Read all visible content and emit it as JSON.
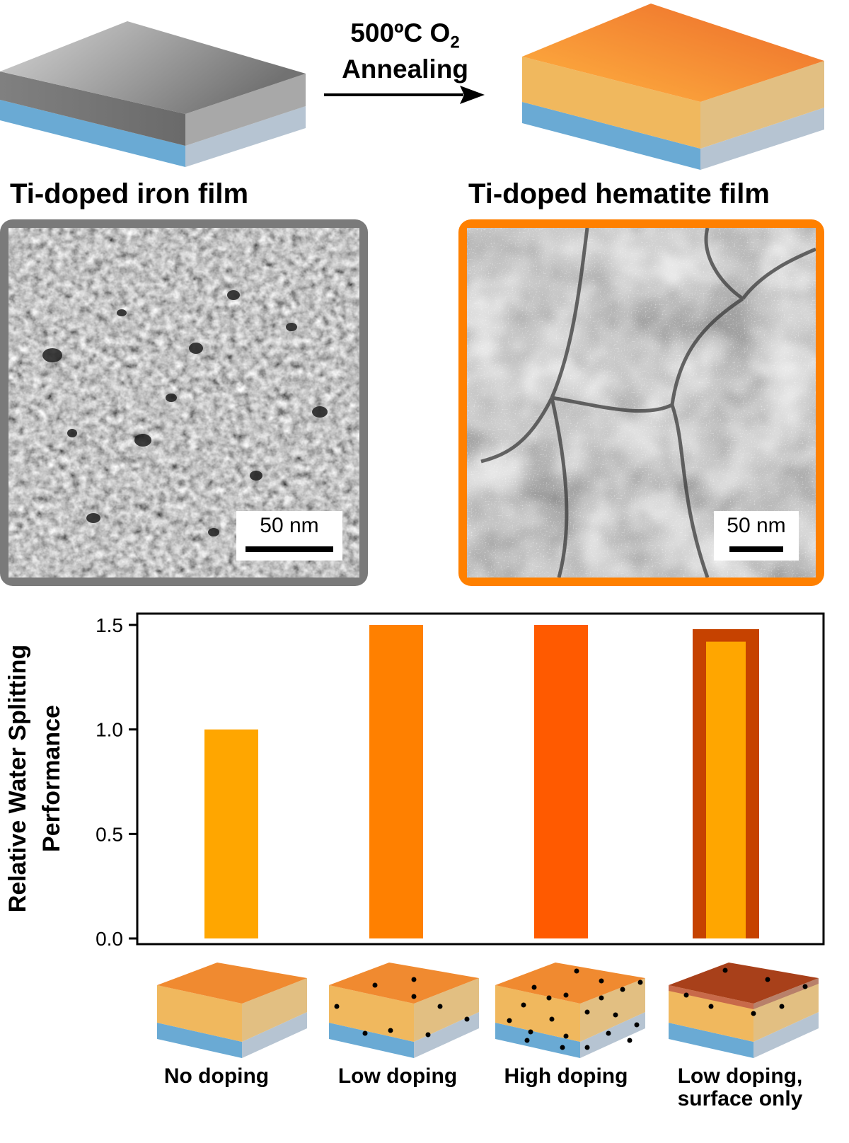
{
  "top": {
    "process_line1": "500ºC O",
    "process_subscript": "2",
    "process_line2": "Annealing",
    "left_film_label": "Ti-doped iron film",
    "right_film_label": "Ti-doped hematite film",
    "left_frame_color": "#7a7a7a",
    "right_frame_color": "#ff8000",
    "left_scale_label": "50 nm",
    "right_scale_label": "50 nm"
  },
  "chart_data": {
    "type": "bar",
    "ylabel_line1": "Relative Water Splitting",
    "ylabel_line2": "Performance",
    "ylim": [
      0,
      1.6
    ],
    "yticks": [
      0.0,
      0.5,
      1.0,
      1.5
    ],
    "ytick_labels": [
      "0.0",
      "0.5",
      "1.0",
      "1.5"
    ],
    "categories": [
      "No doping",
      "Low doping",
      "High doping",
      "Low doping, surface only"
    ],
    "category_lines": [
      [
        "No doping"
      ],
      [
        "Low doping"
      ],
      [
        "High doping"
      ],
      [
        "Low doping,",
        "surface only"
      ]
    ],
    "values": [
      1.0,
      1.5,
      1.5,
      1.48
    ],
    "inner_values": [
      null,
      null,
      null,
      1.42
    ],
    "colors": [
      "#ffa600",
      "#ff8000",
      "#ff5a00",
      "#c64200"
    ],
    "inner_color": "#ffa600",
    "grid": false,
    "legend": "none"
  },
  "colors": {
    "substrate_blue": "#6aaad4",
    "substrate_grey": "#b6c4d2",
    "hematite_side": "#f0b85e",
    "hematite_top": "#f08a30",
    "iron": "#8c8c8c",
    "dopant": "#000000"
  }
}
